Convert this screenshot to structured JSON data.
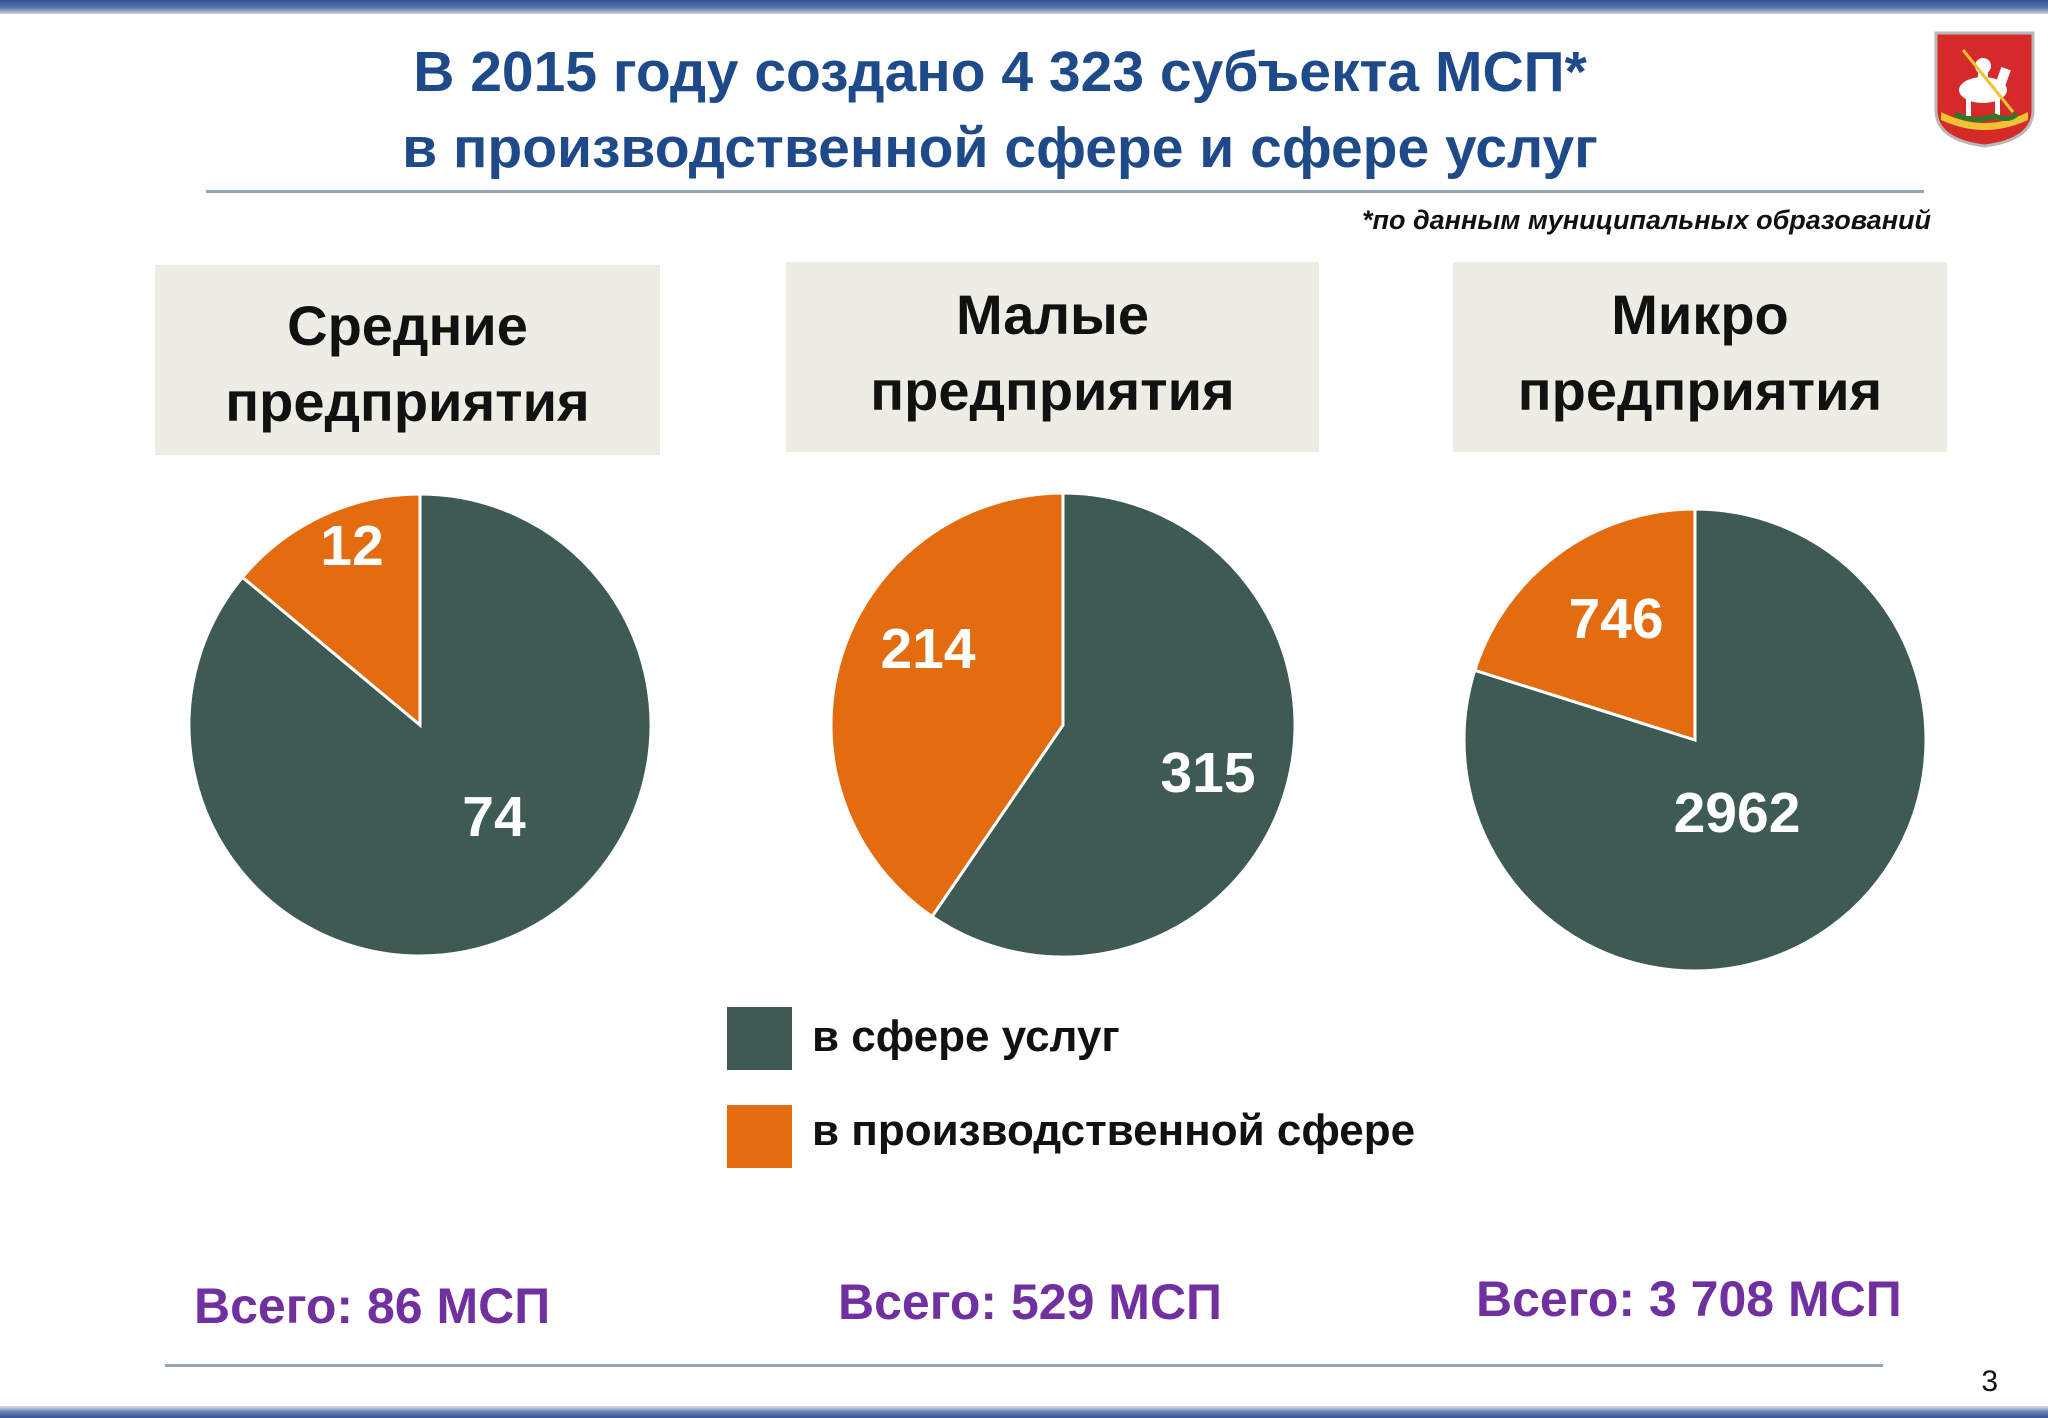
{
  "title": {
    "line1": "В 2015 году создано 4 323 субъекта МСП*",
    "line2": "в производственной сфере и сфере услуг"
  },
  "footnote": "*по данным муниципальных образований",
  "emblem": {
    "icon": "moscow-oblast-coat-of-arms-icon",
    "colors": {
      "shield": "#d42a2a",
      "rider": "#ffffff",
      "gold": "#f1c232"
    }
  },
  "colors": {
    "services": "#3d5a55",
    "production": "#e36c10",
    "title": "#1f4a8a",
    "totals": "#7030a0",
    "box": "#eeede4"
  },
  "chart_data": [
    {
      "type": "pie",
      "title": "Средние предприятия",
      "title_lines": [
        "Средние",
        "предприятия"
      ],
      "slices": [
        {
          "label": "в сфере услуг",
          "value": 74,
          "display": "74",
          "color": "#3d5a55"
        },
        {
          "label": "в производственной сфере",
          "value": 12,
          "display": "12",
          "color": "#e36c10"
        }
      ],
      "total": "Всего: 86 МСП"
    },
    {
      "type": "pie",
      "title": "Малые предприятия",
      "title_lines": [
        "Малые",
        "предприятия"
      ],
      "slices": [
        {
          "label": "в сфере услуг",
          "value": 315,
          "display": "315",
          "color": "#3d5a55"
        },
        {
          "label": "в производственной сфере",
          "value": 214,
          "display": "214",
          "color": "#e36c10"
        }
      ],
      "total": "Всего: 529 МСП"
    },
    {
      "type": "pie",
      "title": "Микро предприятия",
      "title_lines": [
        "Микро",
        "предприятия"
      ],
      "slices": [
        {
          "label": "в сфере услуг",
          "value": 2962,
          "display": "2962",
          "color": "#3d5a55"
        },
        {
          "label": "в производственной сфере",
          "value": 746,
          "display": "746",
          "color": "#e36c10"
        }
      ],
      "total": "Всего: 3 708 МСП"
    }
  ],
  "legend": {
    "items": [
      {
        "label": "в сфере услуг",
        "color": "#3d5a55"
      },
      {
        "label": "в производственной сфере",
        "color": "#e36c10"
      }
    ],
    "placement": "bottom-center"
  },
  "page_number": "3"
}
